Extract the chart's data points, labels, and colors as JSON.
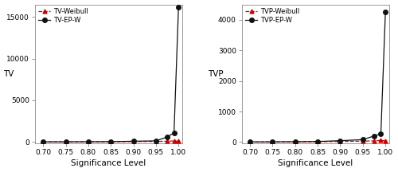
{
  "x": [
    0.7,
    0.75,
    0.8,
    0.85,
    0.9,
    0.95,
    0.975,
    0.99,
    1.0
  ],
  "tv_weibull": [
    5,
    8,
    12,
    20,
    40,
    60,
    80,
    120,
    80
  ],
  "tv_ep_w": [
    10,
    12,
    20,
    35,
    80,
    130,
    600,
    1100,
    16200
  ],
  "tvp_weibull": [
    3,
    4,
    6,
    10,
    20,
    30,
    40,
    55,
    40
  ],
  "tvp_ep_w": [
    5,
    7,
    12,
    18,
    45,
    80,
    200,
    270,
    4250
  ],
  "left_ylabel": "TV",
  "right_ylabel": "TVP",
  "xlabel": "Significance Level",
  "left_legend1": "TV-Weibull",
  "left_legend2": "TV-EP-W",
  "right_legend1": "TVP-Weibull",
  "right_legend2": "TVP-EP-W",
  "left_ylim": [
    -200,
    16500
  ],
  "right_ylim": [
    -50,
    4500
  ],
  "left_yticks": [
    0,
    5000,
    10000,
    15000
  ],
  "right_yticks": [
    0,
    1000,
    2000,
    3000,
    4000
  ],
  "xticks": [
    0.7,
    0.75,
    0.8,
    0.85,
    0.9,
    0.95,
    1.0
  ],
  "xlim": [
    0.682,
    1.008
  ],
  "color_triangle": "#cc0000",
  "color_circle": "#111111",
  "bg_color": "#ffffff",
  "fig_bg": "#ffffff",
  "spine_color": "#888888"
}
